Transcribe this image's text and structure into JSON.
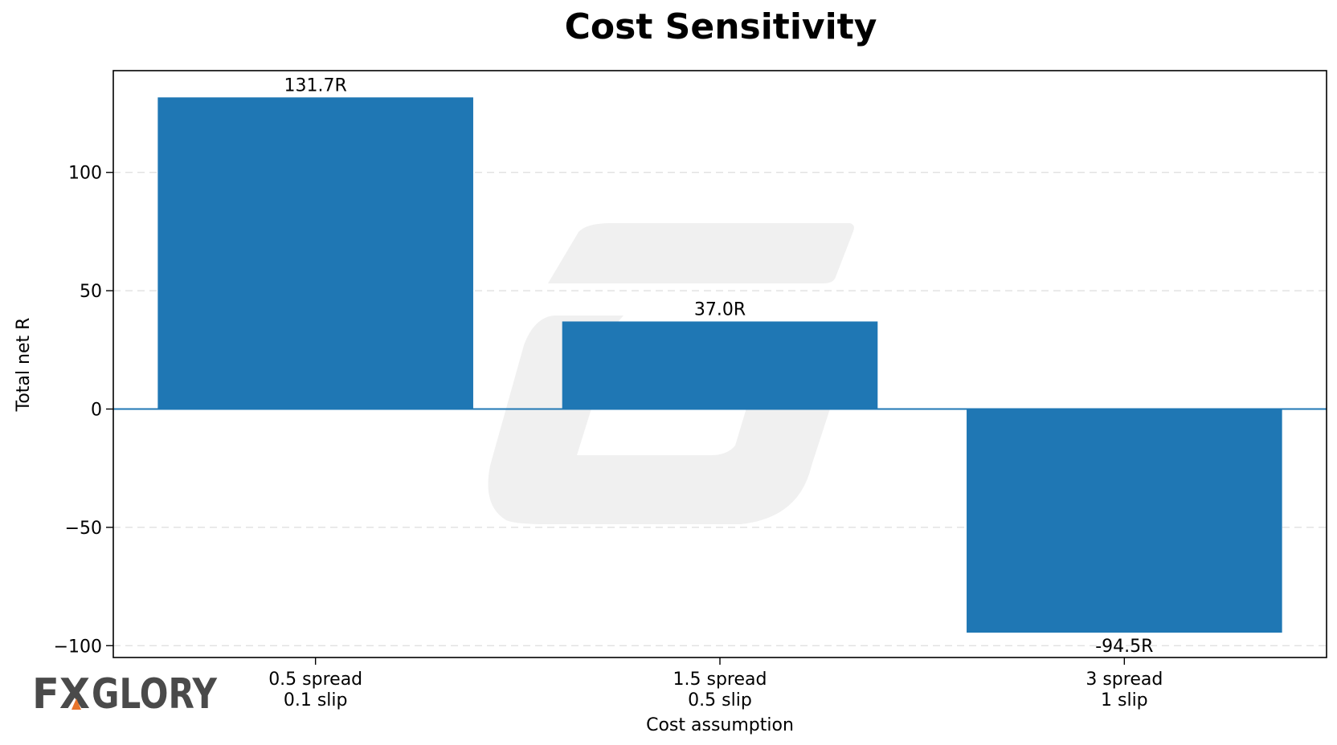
{
  "chart_data": {
    "type": "bar",
    "title": "Cost Sensitivity",
    "xlabel": "Cost assumption",
    "ylabel": "Total net R",
    "categories": [
      [
        "0.5 spread",
        "0.1 slip"
      ],
      [
        "1.5 spread",
        "0.5 slip"
      ],
      [
        "3 spread",
        "1 slip"
      ]
    ],
    "values": [
      131.7,
      37.0,
      -94.5
    ],
    "data_labels": [
      "131.7R",
      "37.0R",
      "-94.5R"
    ],
    "ylim": [
      -105,
      143
    ],
    "yticks": [
      -100,
      -50,
      0,
      50,
      100
    ],
    "ytick_labels": [
      "−100",
      "−50",
      "0",
      "50",
      "100"
    ],
    "grid": "y, dashed",
    "bar_color": "#1f77b4",
    "zero_line_color": "#1f77b4"
  },
  "watermark": {
    "brand_parts": [
      "FX",
      "GLORY"
    ],
    "color": "#4a4a4a",
    "accent_color": "#e8742a",
    "background_icon": "stylized-g-icon"
  }
}
